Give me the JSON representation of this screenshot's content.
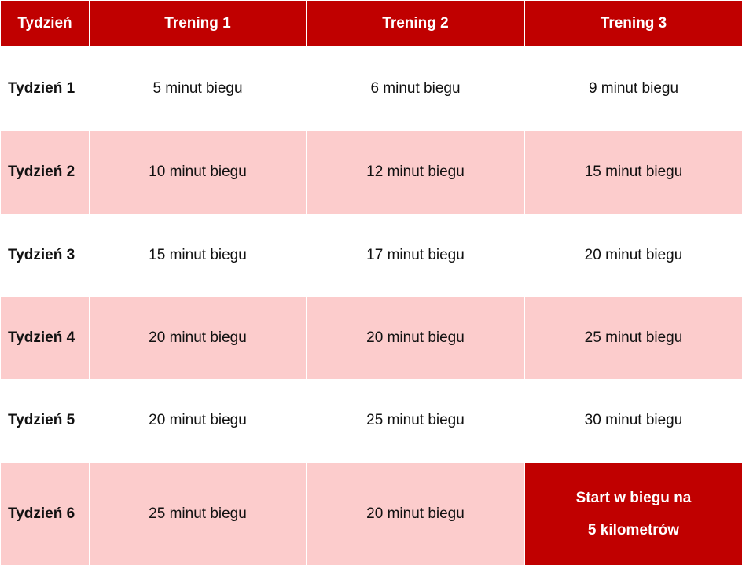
{
  "table": {
    "header": [
      "Tydzień",
      "Trening 1",
      "Trening 2",
      "Trening 3"
    ],
    "rows": [
      [
        "Tydzień 1",
        "5 minut biegu",
        "6 minut biegu",
        "9 minut biegu"
      ],
      [
        "Tydzień 2",
        "10 minut biegu",
        "12 minut biegu",
        "15 minut biegu"
      ],
      [
        "Tydzień 3",
        "15 minut biegu",
        "17 minut biegu",
        "20 minut biegu"
      ],
      [
        "Tydzień 4",
        "20 minut biegu",
        "20 minut biegu",
        "25 minut biegu"
      ],
      [
        "Tydzień 5",
        "20 minut biegu",
        "25 minut biegu",
        "30 minut biegu"
      ],
      [
        "Tydzień 6",
        "25 minut biegu",
        "20 minut biegu",
        [
          "Start w biegu na",
          "5 kilometrów"
        ]
      ]
    ]
  }
}
